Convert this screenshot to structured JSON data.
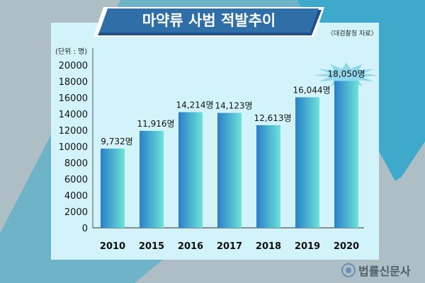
{
  "title": "마약류 사범 적발추이",
  "source": "〈대검찰청 자료〉",
  "logo_text": "법률신문사",
  "colors": {
    "panel": "#d3f3fa",
    "title_bg": "#2f6ea6",
    "bar_dark": "#2a7fc9",
    "bar_light": "#6de3d8"
  },
  "chart_data": {
    "type": "bar",
    "title": "마약류 사범 적발추이",
    "unit_label": "(단위 : 명)",
    "categories": [
      "2010",
      "2015",
      "2016",
      "2017",
      "2018",
      "2019",
      "2020"
    ],
    "values": [
      9732,
      11916,
      14214,
      14123,
      12613,
      16044,
      18050
    ],
    "data_labels": [
      "9,732명",
      "11,916명",
      "14,214명",
      "14,123명",
      "12,613명",
      "16,044명",
      "18,050명"
    ],
    "yticks": [
      "0",
      "2000",
      "4000",
      "6000",
      "8000",
      "10000",
      "12000",
      "14000",
      "16000",
      "18000",
      "20000"
    ],
    "ylim": [
      0,
      20000
    ],
    "grid": false,
    "highlight": "2020"
  }
}
